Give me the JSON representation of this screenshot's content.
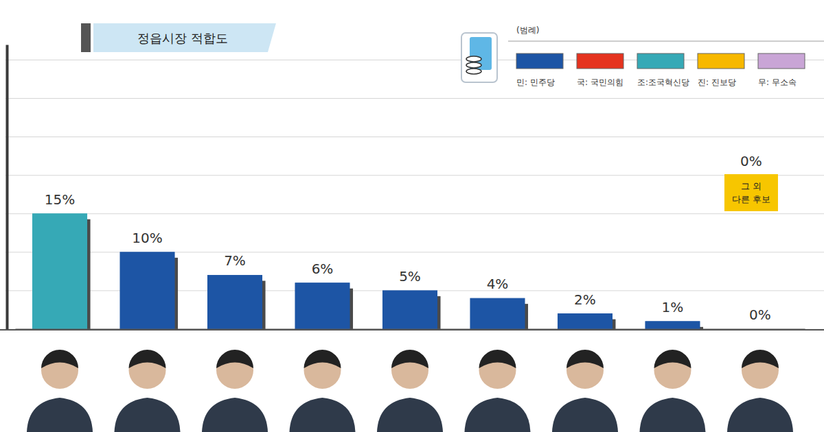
{
  "chart_data": {
    "type": "bar",
    "title": "정읍시장 적합도",
    "categories": [
      null,
      null,
      null,
      null,
      null,
      null,
      null,
      null,
      null
    ],
    "values": [
      15,
      10,
      7,
      6,
      5,
      4,
      2,
      1,
      0
    ],
    "value_labels": [
      "15%",
      "10%",
      "7%",
      "6%",
      "5%",
      "4%",
      "2%",
      "1%",
      "0%"
    ],
    "colors": [
      "#36a9b6",
      "#1d55a5",
      "#1d55a5",
      "#1d55a5",
      "#1d55a5",
      "#1d55a5",
      "#1d55a5",
      "#1d55a5",
      "#f2e96a"
    ],
    "ylim": [
      0,
      37
    ],
    "yticks": [
      0,
      5,
      10,
      15,
      20,
      25,
      30,
      35
    ],
    "grid": true,
    "data_labels": true,
    "tick_labels": false,
    "legend": "top-right",
    "legend_title": "(범례)",
    "legend_items": [
      {
        "name": "민: 민주당",
        "color": "#1d55a5"
      },
      {
        "name": "국: 국민의힘",
        "color": "#e5331f"
      },
      {
        "name": "조:조국혁신당",
        "color": "#36a9b6"
      },
      {
        "name": "진: 진보당",
        "color": "#f7b800"
      },
      {
        "name": "무: 무소속",
        "color": "#c9a5d6"
      }
    ],
    "annotation": {
      "text": "그 외 다른 후보",
      "value": 0,
      "value_label": "0%"
    }
  }
}
